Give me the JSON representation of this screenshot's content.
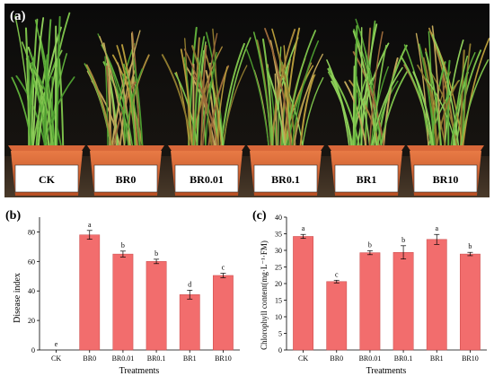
{
  "photo": {
    "panel_label": "(a)",
    "pot_labels": [
      "CK",
      "BR0",
      "BR0.01",
      "BR0.1",
      "BR1",
      "BR10"
    ]
  },
  "chart_data": [
    {
      "type": "bar",
      "panel_label": "(b)",
      "categories": [
        "CK",
        "BR0",
        "BR0.01",
        "BR0.1",
        "BR1",
        "BR10"
      ],
      "values": [
        0,
        78,
        65,
        60,
        37.5,
        50.5
      ],
      "errors": [
        0,
        3,
        2,
        1.5,
        3,
        1.5
      ],
      "letters": [
        "e",
        "a",
        "b",
        "b",
        "d",
        "c"
      ],
      "xlabel": "Treatments",
      "ylabel": "Disease index",
      "ylim": [
        0,
        90
      ],
      "yticks": [
        0,
        20,
        40,
        60,
        80
      ],
      "bar_color": "#f26d6d"
    },
    {
      "type": "bar",
      "panel_label": "(c)",
      "categories": [
        "CK",
        "BR0",
        "BR0.01",
        "BR0.1",
        "BR1",
        "BR10"
      ],
      "values": [
        34.2,
        20.6,
        29.3,
        29.4,
        33.3,
        28.9
      ],
      "errors": [
        0.6,
        0.4,
        0.6,
        2.0,
        1.5,
        0.5
      ],
      "letters": [
        "a",
        "c",
        "b",
        "b",
        "a",
        "b"
      ],
      "xlabel": "Treatments",
      "ylabel": "Chlorophyll content(mg·L⁻¹·FM)",
      "ylim": [
        0,
        40
      ],
      "yticks": [
        0,
        5,
        10,
        15,
        20,
        25,
        30,
        35,
        40
      ],
      "bar_color": "#f26d6d"
    }
  ]
}
